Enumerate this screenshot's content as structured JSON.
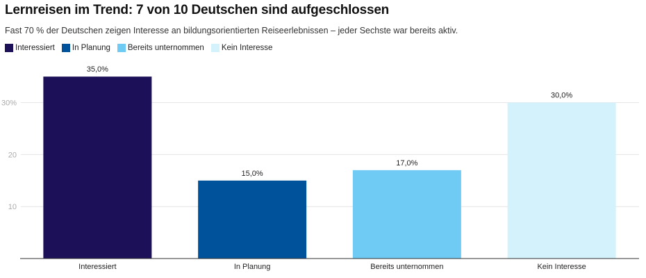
{
  "chart_data": {
    "type": "bar",
    "title": "Lernreisen im Trend: 7 von 10 Deutschen sind aufgeschlossen",
    "subtitle": "Fast 70 % der Deutschen zeigen Interesse an bildungsorientierten Reiseerlebnissen – jeder Sechste war bereits aktiv.",
    "categories": [
      "Interessiert",
      "In Planung",
      "Bereits unternommen",
      "Kein Interesse"
    ],
    "values": [
      35,
      15,
      17,
      30
    ],
    "data_labels": [
      "35,0%",
      "15,0%",
      "17,0%",
      "30,0%"
    ],
    "colors": [
      "#1c1058",
      "#00529b",
      "#70cbf4",
      "#d4f2fc"
    ],
    "legend": [
      "Interessiert",
      "In Planung",
      "Bereits unternommen",
      "Kein Interesse"
    ],
    "legend_position": "top-left",
    "yticks": [
      {
        "value": 10,
        "label": "10"
      },
      {
        "value": 20,
        "label": "20"
      },
      {
        "value": 30,
        "label": "30%"
      }
    ],
    "ylim": [
      0,
      37
    ],
    "grid": true,
    "xlabel": "",
    "ylabel": ""
  }
}
